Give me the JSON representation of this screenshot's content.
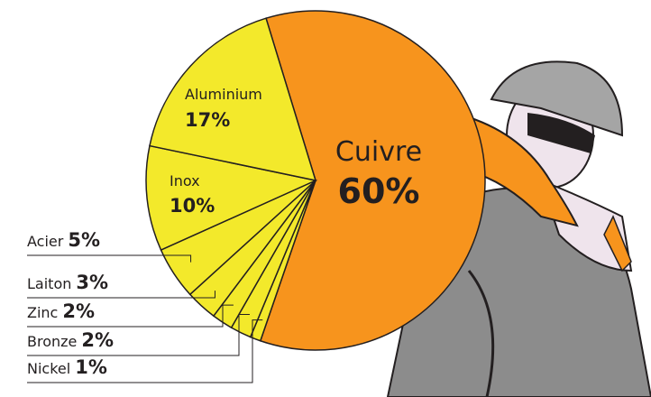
{
  "chart_data": {
    "type": "pie",
    "categories": [
      "Cuivre",
      "Nickel",
      "Bronze",
      "Zinc",
      "Laiton",
      "Acier",
      "Inox",
      "Aluminium"
    ],
    "values": [
      60,
      1,
      2,
      2,
      3,
      5,
      10,
      17
    ],
    "value_labels": [
      "60%",
      "1%",
      "2%",
      "2%",
      "3%",
      "5%",
      "10%",
      "17%"
    ],
    "colors": [
      "#f7941d",
      "#f3e92b",
      "#f3e92b",
      "#f3e92b",
      "#f3e92b",
      "#f3e92b",
      "#f3e92b",
      "#f3e92b"
    ]
  }
}
